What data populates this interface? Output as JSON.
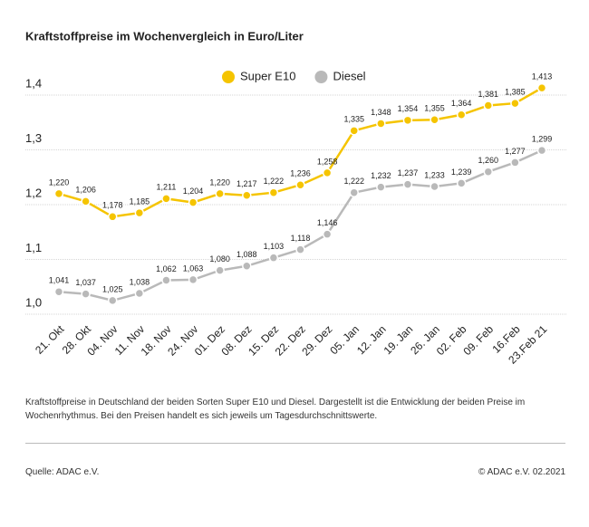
{
  "chart_data": {
    "type": "line",
    "title": "Kraftstoffpreise im Wochenvergleich in Euro/Liter",
    "categories": [
      "21. Okt",
      "28. Okt",
      "04. Nov",
      "11. Nov",
      "18. Nov",
      "24. Nov",
      "01. Dez",
      "08. Dez",
      "15. Dez",
      "22. Dez",
      "29. Dez",
      "05. Jan",
      "12. Jan",
      "19. Jan",
      "26. Jan",
      "02. Feb",
      "09. Feb",
      "16.Feb",
      "23.Feb 21"
    ],
    "series": [
      {
        "name": "Super E10",
        "color": "#f5c400",
        "values": [
          1.22,
          1.206,
          1.178,
          1.185,
          1.211,
          1.204,
          1.22,
          1.217,
          1.222,
          1.236,
          1.258,
          1.335,
          1.348,
          1.354,
          1.355,
          1.364,
          1.381,
          1.385,
          1.413
        ],
        "value_labels": [
          "1,220",
          "1,206",
          "1,178",
          "1,185",
          "1,211",
          "1,204",
          "1,220",
          "1,217",
          "1,222",
          "1,236",
          "1,258",
          "1,335",
          "1,348",
          "1,354",
          "1,355",
          "1,364",
          "1,381",
          "1,385",
          "1,413"
        ]
      },
      {
        "name": "Diesel",
        "color": "#b9b9b9",
        "values": [
          1.041,
          1.037,
          1.025,
          1.038,
          1.062,
          1.063,
          1.08,
          1.088,
          1.103,
          1.118,
          1.146,
          1.222,
          1.232,
          1.237,
          1.233,
          1.239,
          1.26,
          1.277,
          1.299
        ],
        "value_labels": [
          "1,041",
          "1,037",
          "1,025",
          "1,038",
          "1,062",
          "1,063",
          "1,080",
          "1,088",
          "1,103",
          "1,118",
          "1,146",
          "1,222",
          "1,232",
          "1,237",
          "1,233",
          "1,239",
          "1,260",
          "1,277",
          "1,299"
        ]
      }
    ],
    "ylim": [
      1.0,
      1.4
    ],
    "yticks": [
      {
        "value": 1.0,
        "label": "1,0"
      },
      {
        "value": 1.1,
        "label": "1,1"
      },
      {
        "value": 1.2,
        "label": "1,2"
      },
      {
        "value": 1.3,
        "label": "1,3"
      },
      {
        "value": 1.4,
        "label": "1,4"
      }
    ],
    "grid": true,
    "legend": "top",
    "footnote": "Kraftstoffpreise in Deutschland der beiden Sorten Super E10 und Diesel. Dargestellt ist die Entwicklung der beiden Preise im Wochenrhythmus. Bei den Preisen handelt es sich jeweils um Tagesdurchschnittswerte.",
    "source": "Quelle: ADAC e.V.",
    "copyright": "© ADAC e.V. 02.2021"
  }
}
